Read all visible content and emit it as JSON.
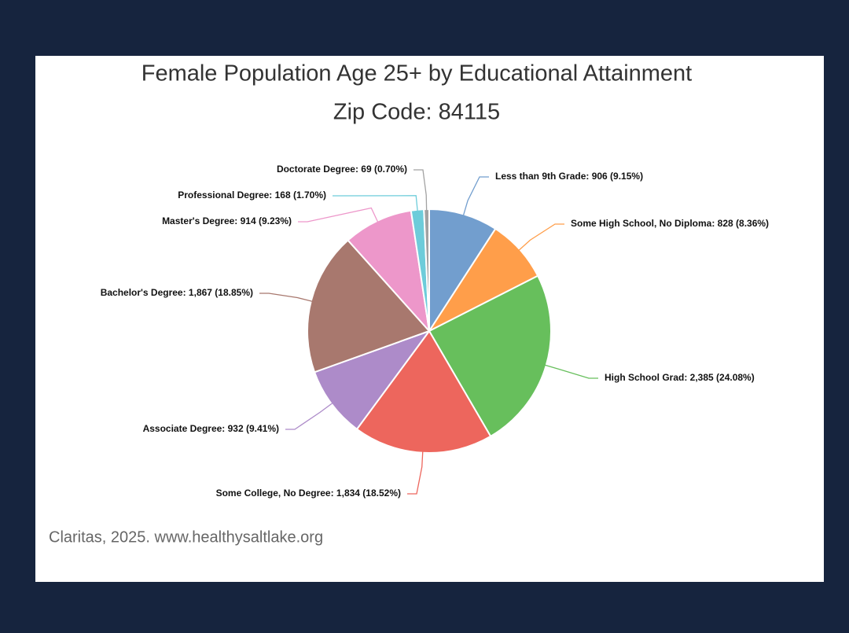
{
  "chart_data": {
    "type": "pie",
    "title": "Female Population Age 25+ by Educational Attainment",
    "subtitle": "Zip Code: 84115",
    "source": "Claritas, 2025. www.healthysaltlake.org",
    "values": [
      906,
      828,
      2385,
      1834,
      932,
      1867,
      914,
      168,
      69
    ],
    "value_labels": [
      "Less than 9th Grade: 906 (9.15%)",
      "Some High School, No Diploma: 828 (8.36%)",
      "High School Grad: 2,385 (24.08%)",
      "Some College, No Degree: 1,834 (18.52%)",
      "Associate Degree: 932 (9.41%)",
      "Bachelor's Degree: 1,867 (18.85%)",
      "Master's Degree: 914 (9.23%)",
      "Professional Degree: 168 (1.70%)",
      "Doctorate Degree: 69 (0.70%)"
    ],
    "colors": [
      "#729ece",
      "#ff9e4a",
      "#67bf5c",
      "#ed665d",
      "#ad8bc9",
      "#a8786e",
      "#ed97ca",
      "#6dccda",
      "#a2a2a2"
    ]
  }
}
